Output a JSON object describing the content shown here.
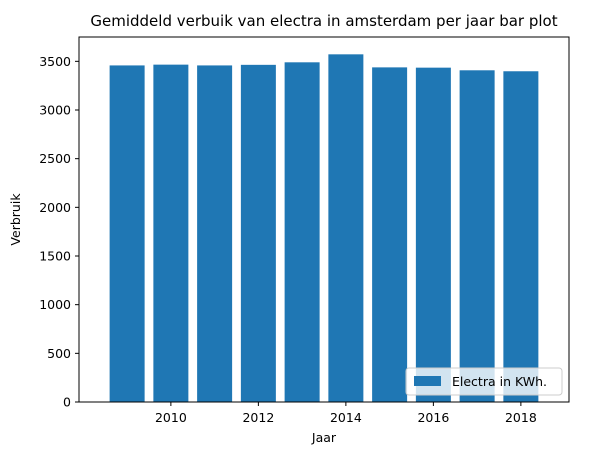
{
  "chart_data": {
    "type": "bar",
    "title": "Gemiddeld verbuik van electra in amsterdam per jaar bar plot",
    "xlabel": "Jaar",
    "ylabel": "Verbruik",
    "categories": [
      2009,
      2010,
      2011,
      2012,
      2013,
      2014,
      2015,
      2016,
      2017,
      2018
    ],
    "series": [
      {
        "name": "Electra in KWh.",
        "color": "#1f77b4",
        "values": [
          3458,
          3466,
          3458,
          3464,
          3490,
          3572,
          3438,
          3435,
          3408,
          3398
        ]
      }
    ],
    "xlim": [
      2007.9,
      2019.1
    ],
    "ylim": [
      0,
      3750
    ],
    "xticks": [
      2010,
      2012,
      2014,
      2016,
      2018
    ],
    "yticks": [
      0,
      500,
      1000,
      1500,
      2000,
      2500,
      3000,
      3500
    ],
    "legend_position": "lower-right",
    "grid": false
  }
}
